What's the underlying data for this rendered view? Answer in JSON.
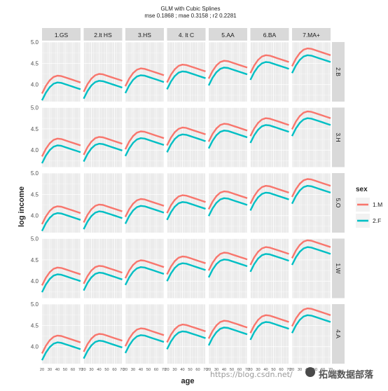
{
  "title_line1": "GLM with Cubic Splines",
  "title_line2": "mse 0.1868 ; mae 0.3158 ; r2 0.2281",
  "watermark": "https://blog.csdn.net/",
  "watermark_brand": "拓端数据部落",
  "colors": {
    "M": "#F8766D",
    "F": "#00BFC4",
    "panel_bg": "#EBEBEB",
    "strip_bg": "#D9D9D9",
    "grid": "#FFFFFF"
  },
  "chart_data": {
    "type": "line",
    "facet_cols": [
      "1.GS",
      "2.lt HS",
      "3.HS",
      "4. lt C",
      "5.AA",
      "6.BA",
      "7.MA+"
    ],
    "facet_rows": [
      "2.B",
      "3.H",
      "5.O",
      "1.W",
      "4.A"
    ],
    "xlabel": "age",
    "ylabel": "log income",
    "xlim": [
      20,
      70
    ],
    "ylim": [
      3.6,
      5.0
    ],
    "x_ticks": [
      20,
      30,
      40,
      50,
      60,
      70
    ],
    "y_ticks": [
      4.0,
      4.5,
      5.0
    ],
    "y_tick_labels": [
      "4.0",
      "4.5",
      "5.0"
    ],
    "legend_title": "sex",
    "legend_position": "right",
    "legend_entries": [
      "1.M",
      "2.F"
    ],
    "x": [
      20,
      25,
      30,
      35,
      40,
      45,
      50,
      55,
      60,
      65,
      70
    ],
    "base_curve_M": [
      3.79,
      3.97,
      4.1,
      4.18,
      4.21,
      4.2,
      4.17,
      4.14,
      4.11,
      4.08,
      4.05
    ],
    "base_curve_F": [
      3.63,
      3.81,
      3.94,
      4.02,
      4.05,
      4.04,
      4.01,
      3.98,
      3.95,
      3.92,
      3.89
    ],
    "col_offsets": [
      0.0,
      0.04,
      0.17,
      0.26,
      0.35,
      0.48,
      0.64
    ],
    "row_offsets": [
      0.0,
      0.06,
      0.01,
      0.11,
      0.05
    ]
  }
}
